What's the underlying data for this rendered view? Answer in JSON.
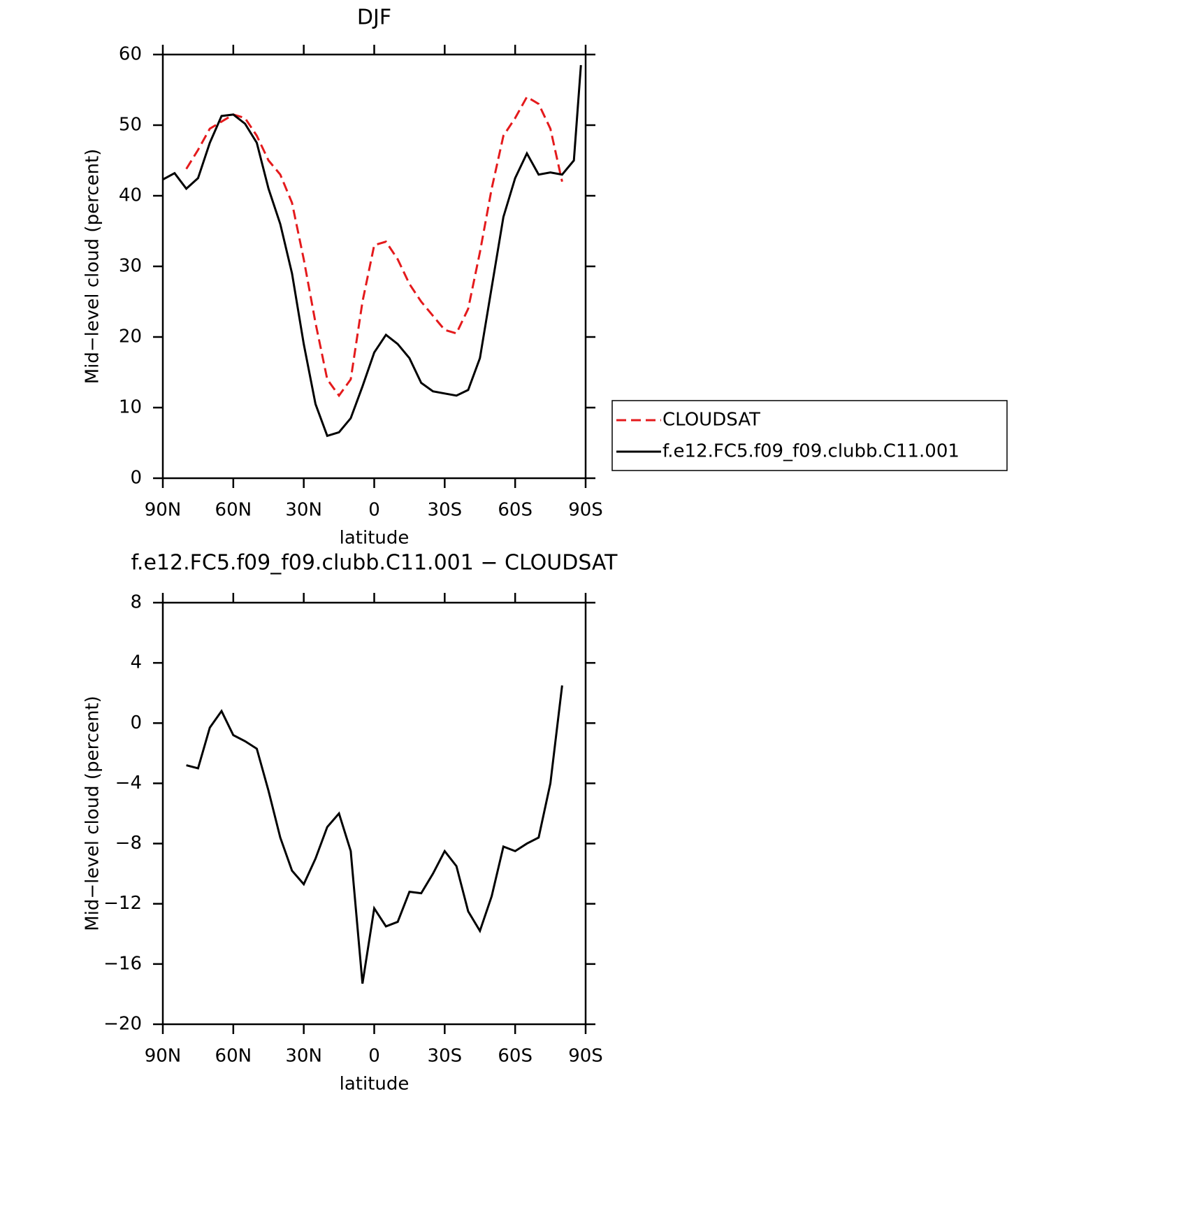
{
  "chart_data": [
    {
      "type": "line",
      "title": "DJF",
      "x_label": "latitude",
      "y_label": "Mid−level cloud (percent)",
      "x": [
        90,
        85,
        80,
        75,
        70,
        65,
        60,
        55,
        50,
        45,
        40,
        35,
        30,
        25,
        20,
        15,
        10,
        5,
        0,
        -5,
        -10,
        -15,
        -20,
        -25,
        -30,
        -35,
        -40,
        -45,
        -50,
        -55,
        -60,
        -65,
        -70,
        -75,
        -80,
        -85,
        -88
      ],
      "xlim": [
        90,
        -90
      ],
      "xticks": [
        {
          "value": 90,
          "label": "90N"
        },
        {
          "value": 60,
          "label": "60N"
        },
        {
          "value": 30,
          "label": "30N"
        },
        0,
        {
          "value": -30,
          "label": "30S"
        },
        {
          "value": -60,
          "label": "60S"
        },
        {
          "value": -90,
          "label": "90S"
        }
      ],
      "ylim": [
        0,
        60
      ],
      "yticks": [
        0,
        10,
        20,
        30,
        40,
        50,
        60
      ],
      "legend": "right",
      "series": [
        {
          "name": "CLOUDSAT",
          "color": "#e41a1c",
          "dash": true,
          "values": [
            null,
            null,
            43.8,
            46.5,
            49.5,
            50.5,
            51.5,
            51,
            48.5,
            45,
            43,
            39,
            31,
            22,
            14,
            11.7,
            14,
            25,
            33,
            33.5,
            31,
            27.5,
            25,
            23,
            21,
            20.5,
            24,
            32,
            41,
            48.5,
            51,
            54,
            53,
            49.5,
            42,
            null,
            null
          ]
        },
        {
          "name": "f.e12.FC5.f09_f09.clubb.C11.001",
          "color": "#000000",
          "dash": false,
          "values": [
            42.3,
            43.2,
            41,
            42.5,
            47.5,
            51.3,
            51.5,
            50.2,
            47.5,
            41,
            36,
            29,
            19,
            10.5,
            6,
            6.5,
            8.5,
            13,
            17.8,
            20.3,
            19,
            17,
            13.5,
            12.3,
            12,
            11.7,
            12.5,
            17,
            27,
            37,
            42.5,
            46,
            43,
            43.3,
            43,
            45,
            58.5
          ]
        }
      ]
    },
    {
      "type": "line",
      "title": "f.e12.FC5.f09_f09.clubb.C11.001 − CLOUDSAT",
      "x_label": "latitude",
      "y_label": "Mid−level cloud (percent)",
      "x": [
        90,
        85,
        80,
        75,
        70,
        65,
        60,
        55,
        50,
        45,
        40,
        35,
        30,
        25,
        20,
        15,
        10,
        5,
        0,
        -5,
        -10,
        -15,
        -20,
        -25,
        -30,
        -35,
        -40,
        -45,
        -50,
        -55,
        -60,
        -65,
        -70,
        -75,
        -80,
        -85,
        -88
      ],
      "xlim": [
        90,
        -90
      ],
      "xticks": [
        {
          "value": 90,
          "label": "90N"
        },
        {
          "value": 60,
          "label": "60N"
        },
        {
          "value": 30,
          "label": "30N"
        },
        0,
        {
          "value": -30,
          "label": "30S"
        },
        {
          "value": -60,
          "label": "60S"
        },
        {
          "value": -90,
          "label": "90S"
        }
      ],
      "ylim": [
        -20,
        8
      ],
      "yticks": [
        {
          "value": -20,
          "label": "−20"
        },
        {
          "value": -16,
          "label": "−16"
        },
        {
          "value": -12,
          "label": "−12"
        },
        {
          "value": -8,
          "label": "−8"
        },
        {
          "value": -4,
          "label": "−4"
        },
        0,
        4,
        8
      ],
      "series": [
        {
          "color": "#000000",
          "dash": false,
          "values": [
            null,
            null,
            -2.8,
            -3,
            -0.3,
            0.8,
            -0.8,
            -1.2,
            -1.7,
            -4.5,
            -7.6,
            -9.8,
            -10.7,
            -9,
            -6.9,
            -6,
            -8.5,
            -17.3,
            -12.3,
            -13.5,
            -13.2,
            -11.2,
            -11.3,
            -10,
            -8.5,
            -9.5,
            -12.5,
            -13.8,
            -11.5,
            -8.2,
            -8.5,
            -8,
            -7.6,
            -4,
            2.5,
            null,
            null
          ]
        }
      ]
    }
  ]
}
